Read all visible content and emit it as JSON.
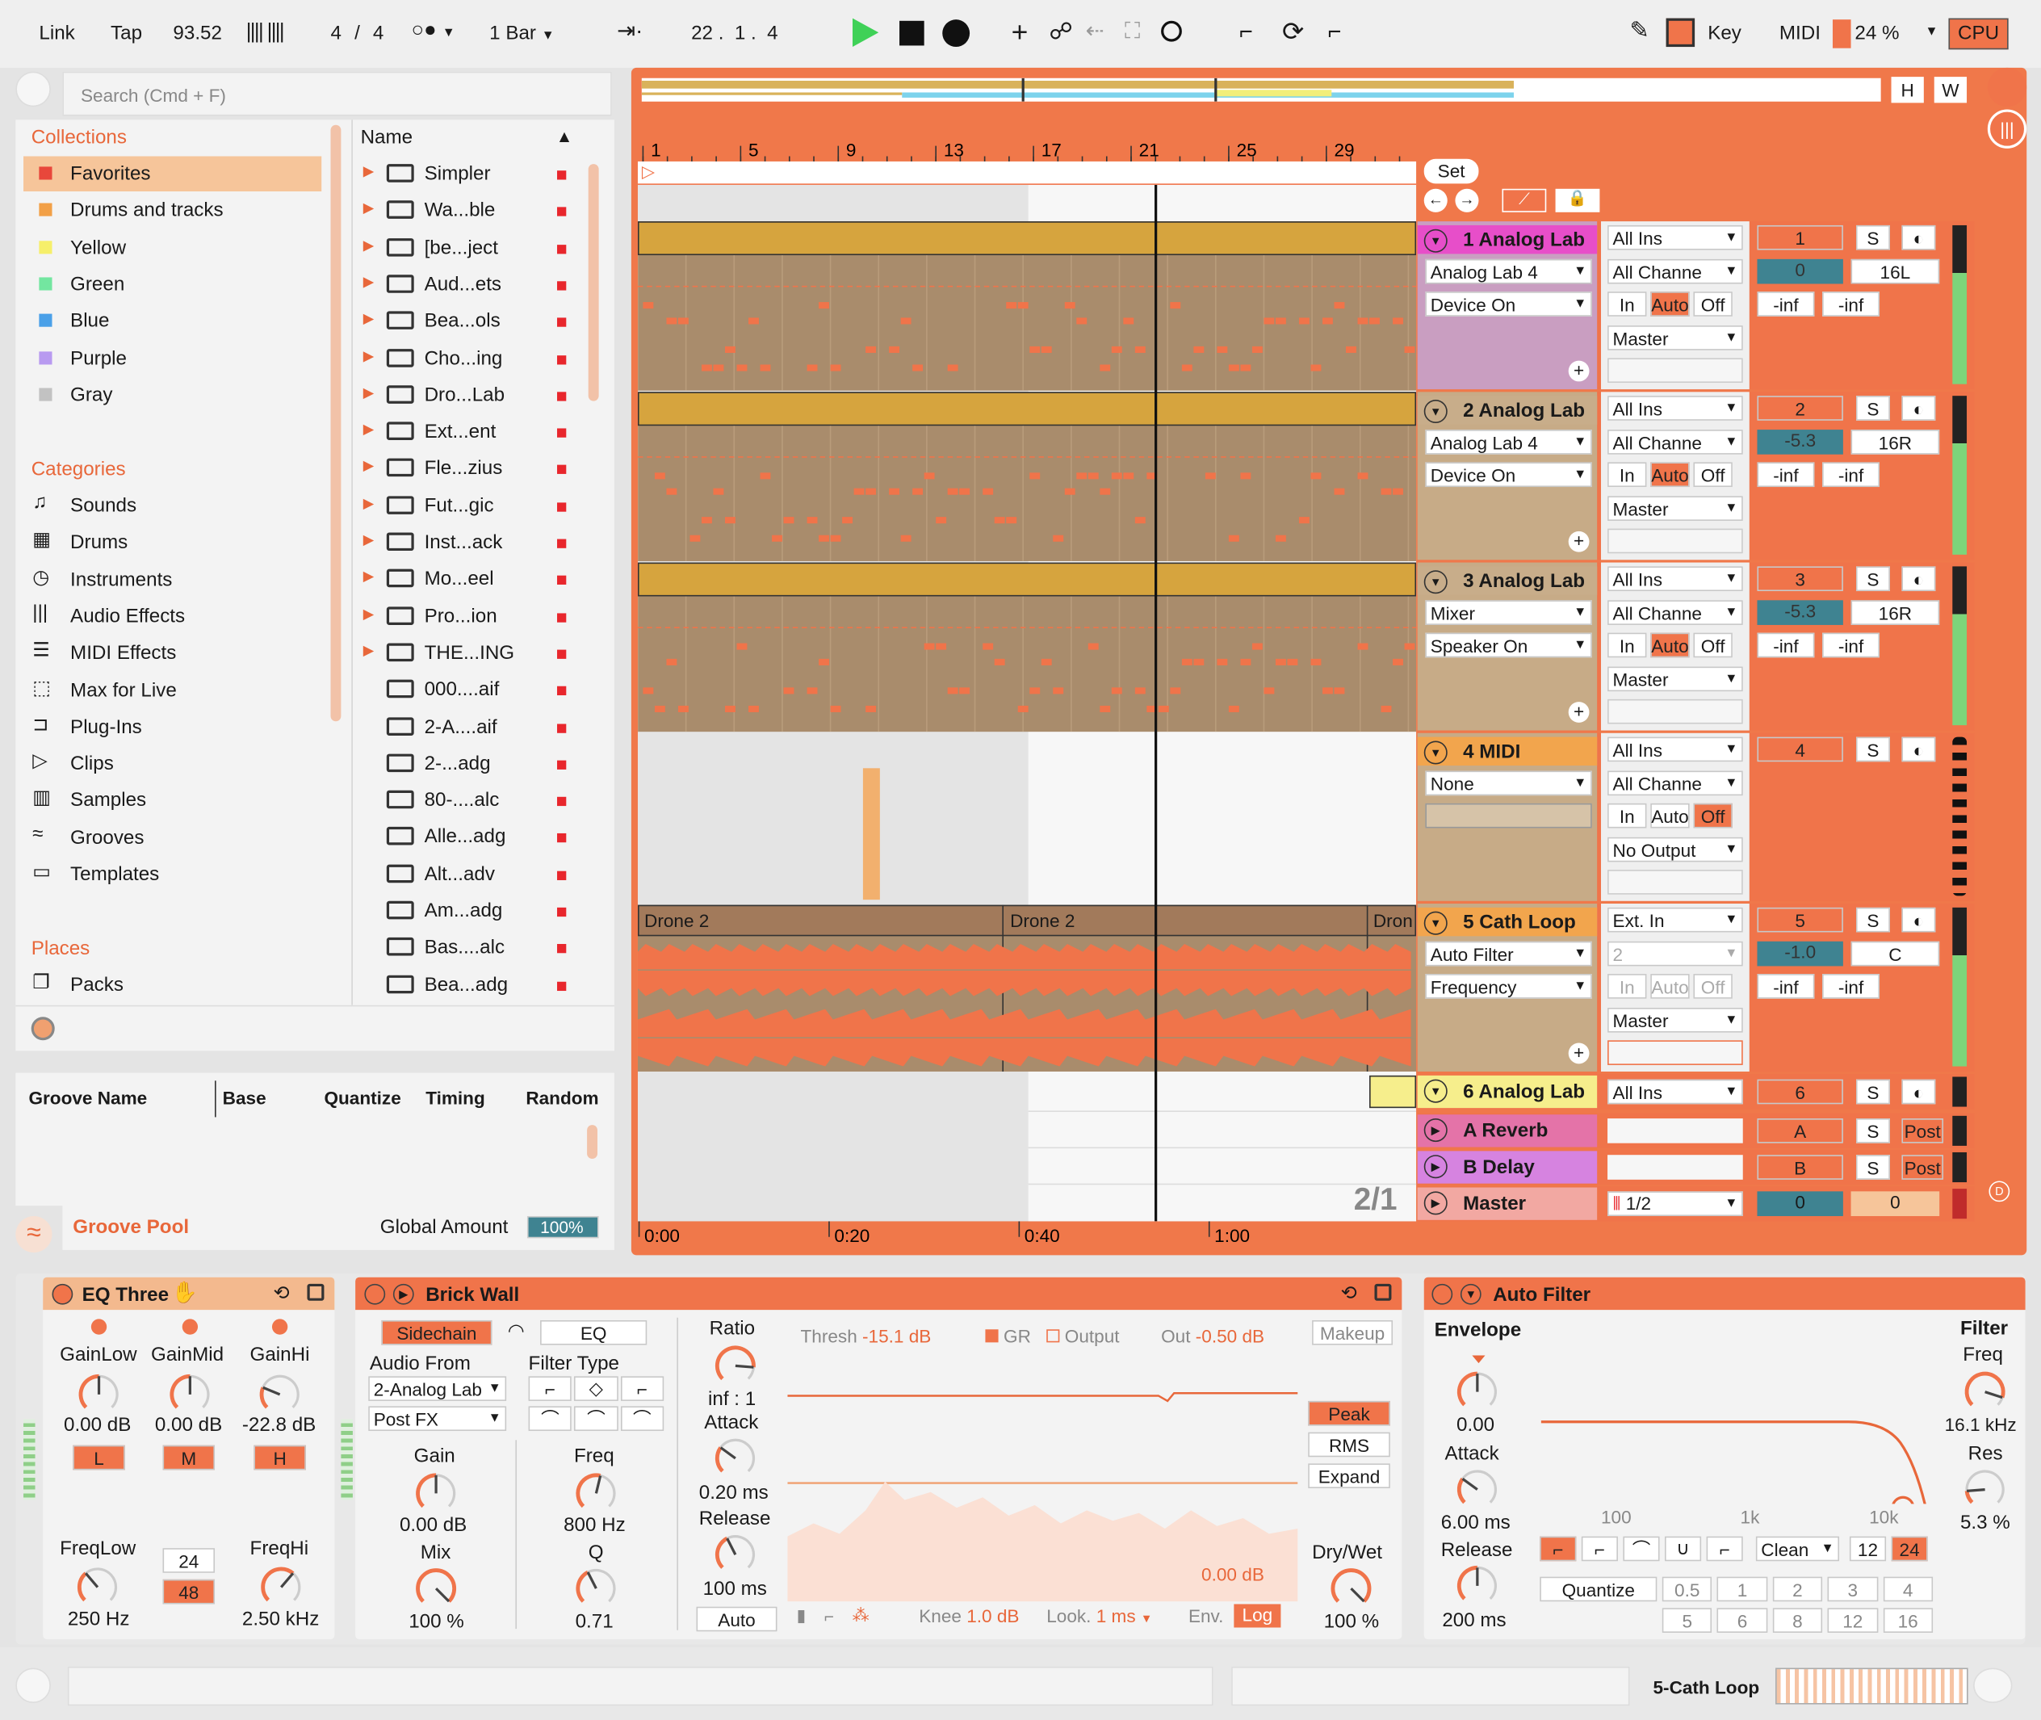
{
  "transport": {
    "link": "Link",
    "tap": "Tap",
    "tempo": "93.52",
    "sig_num": "4",
    "sig_sep": "/",
    "sig_den": "4",
    "quantize": "1 Bar",
    "position": "22 .  1 .  4",
    "key": "Key",
    "midi": "MIDI",
    "cpu_percent": "24 %",
    "cpu": "CPU"
  },
  "browser": {
    "search_placeholder": "Search (Cmd + F)",
    "collections_title": "Collections",
    "collections": [
      {
        "label": "Favorites",
        "color": "#e8473b"
      },
      {
        "label": "Drums and tracks",
        "color": "#f2a047"
      },
      {
        "label": "Yellow",
        "color": "#f6ef6a"
      },
      {
        "label": "Green",
        "color": "#73e6a0"
      },
      {
        "label": "Blue",
        "color": "#4aa0e8"
      },
      {
        "label": "Purple",
        "color": "#b89af0"
      },
      {
        "label": "Gray",
        "color": "#c2c2c2"
      }
    ],
    "categories_title": "Categories",
    "categories": [
      {
        "label": "Sounds",
        "icon": "note-icon"
      },
      {
        "label": "Drums",
        "icon": "grid-icon"
      },
      {
        "label": "Instruments",
        "icon": "clock-icon"
      },
      {
        "label": "Audio Effects",
        "icon": "waveform-icon"
      },
      {
        "label": "MIDI Effects",
        "icon": "midi-lines-icon"
      },
      {
        "label": "Max for Live",
        "icon": "max-icon"
      },
      {
        "label": "Plug-Ins",
        "icon": "plug-icon"
      },
      {
        "label": "Clips",
        "icon": "play-box-icon"
      },
      {
        "label": "Samples",
        "icon": "samples-icon"
      },
      {
        "label": "Grooves",
        "icon": "groove-icon"
      },
      {
        "label": "Templates",
        "icon": "template-icon"
      }
    ],
    "places_title": "Places",
    "places": [
      {
        "label": "Packs",
        "icon": "packs-icon"
      }
    ],
    "name_header": "Name",
    "files": [
      {
        "label": "Simpler",
        "arrow": true
      },
      {
        "label": "Wa...ble",
        "arrow": true
      },
      {
        "label": "[be...ject",
        "arrow": true
      },
      {
        "label": "Aud...ets",
        "arrow": true
      },
      {
        "label": "Bea...ols",
        "arrow": true
      },
      {
        "label": "Cho...ing",
        "arrow": true
      },
      {
        "label": "Dro...Lab",
        "arrow": true
      },
      {
        "label": "Ext...ent",
        "arrow": true
      },
      {
        "label": "Fle...zius",
        "arrow": true
      },
      {
        "label": "Fut...gic",
        "arrow": true
      },
      {
        "label": "Inst...ack",
        "arrow": true
      },
      {
        "label": "Mo...eel",
        "arrow": true
      },
      {
        "label": "Pro...ion",
        "arrow": true
      },
      {
        "label": "THE...ING",
        "arrow": true
      },
      {
        "label": "000....aif",
        "arrow": false
      },
      {
        "label": "2-A....aif",
        "arrow": false
      },
      {
        "label": "2-...adg",
        "arrow": false
      },
      {
        "label": "80-....alc",
        "arrow": false
      },
      {
        "label": "Alle...adg",
        "arrow": false
      },
      {
        "label": "Alt...adv",
        "arrow": false
      },
      {
        "label": "Am...adg",
        "arrow": false
      },
      {
        "label": "Bas....alc",
        "arrow": false
      },
      {
        "label": "Bea...adg",
        "arrow": false
      }
    ]
  },
  "groove": {
    "col_name": "Groove Name",
    "col_base": "Base",
    "col_quantize": "Quantize",
    "col_timing": "Timing",
    "col_random": "Random",
    "pool": "Groove Pool",
    "global_amount": "Global Amount",
    "global_value": "100%"
  },
  "arrangement": {
    "bars": [
      "1",
      "5",
      "9",
      "13",
      "17",
      "21",
      "25",
      "29"
    ],
    "times": [
      "0:00",
      "0:20",
      "0:40",
      "1:00"
    ],
    "set": "Set",
    "h": "H",
    "w": "W",
    "zoom": "2/1",
    "clip_drone_a": "Drone 2",
    "clip_drone_b": "Drone 2",
    "clip_drone_c": "Dron"
  },
  "tracks": [
    {
      "name": "1 Analog Lab",
      "color": "#e74ec9",
      "in": "All Ins",
      "dev": "Analog Lab 4",
      "param": "Device On",
      "ch": "All Channe",
      "mon": [
        "In",
        "Auto",
        "Off"
      ],
      "monsel": 1,
      "out": "Master",
      "num": "1",
      "vol": "0",
      "pan": "16L",
      "l": "-inf",
      "r": "-inf"
    },
    {
      "name": "2 Analog Lab",
      "color": "#c8ad8a",
      "in": "All Ins",
      "dev": "Analog Lab 4",
      "param": "Device On",
      "ch": "All Channe",
      "mon": [
        "In",
        "Auto",
        "Off"
      ],
      "monsel": 1,
      "out": "Master",
      "num": "2",
      "vol": "-5.3",
      "pan": "16R",
      "l": "-inf",
      "r": "-inf"
    },
    {
      "name": "3 Analog Lab",
      "color": "#c8ad8a",
      "in": "All Ins",
      "dev": "Mixer",
      "param": "Speaker On",
      "ch": "All Channe",
      "mon": [
        "In",
        "Auto",
        "Off"
      ],
      "monsel": 1,
      "out": "Master",
      "num": "3",
      "vol": "-5.3",
      "pan": "16R",
      "l": "-inf",
      "r": "-inf"
    },
    {
      "name": "4 MIDI",
      "color": "#f2a54d",
      "in": "All Ins",
      "dev": "None",
      "param": "",
      "ch": "All Channe",
      "mon": [
        "In",
        "Auto",
        "Off"
      ],
      "monsel": 2,
      "out": "No Output",
      "num": "4",
      "vol": "",
      "pan": "",
      "l": "",
      "r": ""
    },
    {
      "name": "5 Cath Loop",
      "color": "#f2a54d",
      "in": "Ext. In",
      "dev": "Auto Filter",
      "param": "Frequency",
      "ch": "2",
      "mon": [
        "In",
        "Auto",
        "Off"
      ],
      "monsel": -1,
      "out": "Master",
      "num": "5",
      "vol": "-1.0",
      "pan": "C",
      "l": "-inf",
      "r": "-inf"
    }
  ],
  "track6": {
    "name": "6 Analog Lab",
    "in": "All Ins",
    "num": "6",
    "s": "S"
  },
  "returns": [
    {
      "name": "A Reverb",
      "color": "#e473a8",
      "num": "A",
      "s": "S",
      "post": "Post"
    },
    {
      "name": "B Delay",
      "color": "#d683e0",
      "num": "B",
      "s": "S",
      "post": "Post"
    }
  ],
  "master": {
    "name": "Master",
    "out": "1/2",
    "vol": "0",
    "pan": "0"
  },
  "devices": {
    "eq": {
      "title": "EQ Three",
      "gl": "GainLow",
      "gm": "GainMid",
      "gh": "GainHi",
      "vl": "0.00 dB",
      "vm": "0.00 dB",
      "vh": "-22.8 dB",
      "bl": "L",
      "bm": "M",
      "bh": "H",
      "fl": "FreqLow",
      "fh": "FreqHi",
      "s24": "24",
      "s48": "48",
      "flv": "250 Hz",
      "fhv": "2.50 kHz"
    },
    "bw": {
      "title": "Brick Wall",
      "sidechain": "Sidechain",
      "eq": "EQ",
      "audio_from": "Audio From",
      "src": "2-Analog Lab",
      "pos": "Post FX",
      "filter_type": "Filter Type",
      "gain": "Gain",
      "gain_v": "0.00 dB",
      "freq": "Freq",
      "freq_v": "800 Hz",
      "mix": "Mix",
      "mix_v": "100 %",
      "q": "Q",
      "q_v": "0.71",
      "ratio": "Ratio",
      "ratio_v": "inf : 1",
      "attack": "Attack",
      "attack_v": "0.20 ms",
      "release": "Release",
      "release_v": "100 ms",
      "auto": "Auto",
      "thresh": "Thresh",
      "thresh_v": "-15.1 dB",
      "gr": "GR",
      "output": "Output",
      "out": "Out",
      "out_v": "-0.50 dB",
      "makeup": "Makeup",
      "peak": "Peak",
      "rms": "RMS",
      "expand": "Expand",
      "gr_v": "0.00 dB",
      "knee": "Knee",
      "knee_v": "1.0 dB",
      "look": "Look.",
      "look_v": "1 ms",
      "env": "Env.",
      "log": "Log",
      "drywet": "Dry/Wet",
      "drywet_v": "100 %"
    },
    "af": {
      "title": "Auto Filter",
      "envelope": "Envelope",
      "env_v": "0.00",
      "attack": "Attack",
      "attack_v": "6.00 ms",
      "release": "Release",
      "release_v": "200 ms",
      "filter": "Filter",
      "freq": "Freq",
      "freq_v": "16.1 kHz",
      "res": "Res",
      "res_v": "5.3 %",
      "f100": "100",
      "f1k": "1k",
      "f10k": "10k",
      "clean": "Clean",
      "n12": "12",
      "n24": "24",
      "quantize": "Quantize",
      "q": [
        "0.5",
        "1",
        "2",
        "3",
        "4",
        "5",
        "6",
        "8",
        "12",
        "16"
      ]
    }
  },
  "status": {
    "track": "5-Cath Loop"
  }
}
